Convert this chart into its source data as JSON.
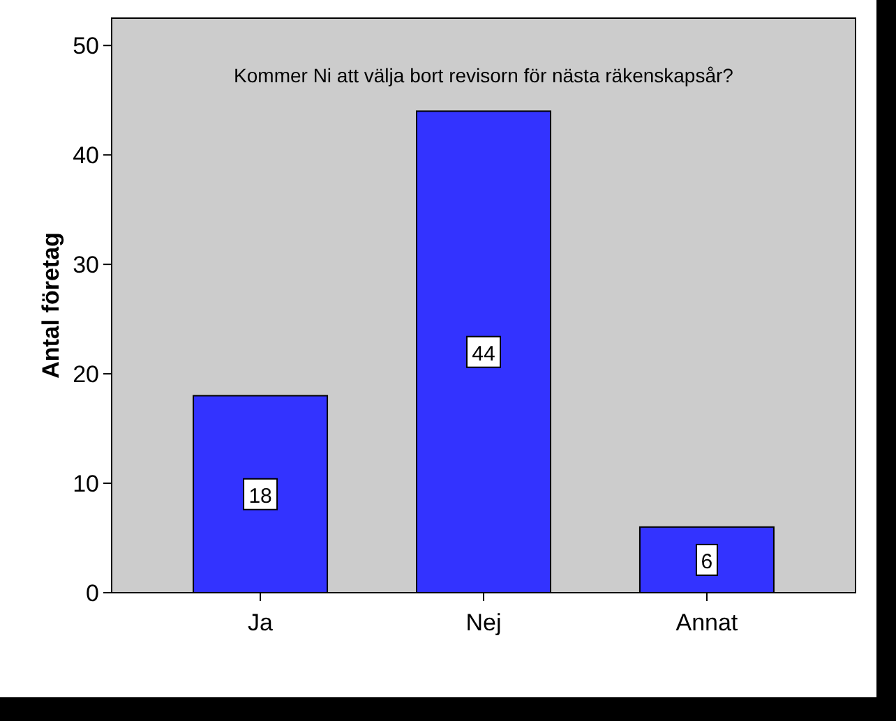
{
  "chart_data": {
    "type": "bar",
    "title": "Kommer Ni att välja bort revisorn för nästa räkenskapsår?",
    "ylabel": "Antal företag",
    "categories": [
      "Ja",
      "Nej",
      "Annat"
    ],
    "values": [
      18,
      44,
      6
    ],
    "color": "#3333ff",
    "ylim": [
      0,
      52.5
    ],
    "yticks": [
      0,
      10,
      20,
      30,
      40,
      50
    ],
    "data_labels": true,
    "grid": false
  }
}
